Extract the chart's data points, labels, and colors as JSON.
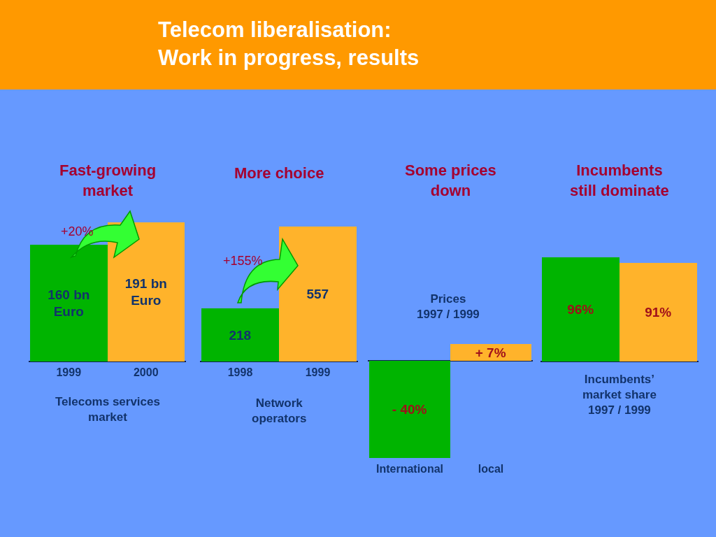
{
  "chart_data": [
    {
      "type": "other",
      "title": "Telecom liberalisation:\nWork in progress, results"
    },
    {
      "type": "bar",
      "title": "Fast-growing\nmarket",
      "xlabel": "Telecoms services\nmarket",
      "categories": [
        "1999",
        "2000"
      ],
      "values": [
        160,
        191
      ],
      "colors": [
        "#00b400",
        "#ffb32b"
      ],
      "value_labels": [
        "160 bn\nEuro",
        "191 bn\nEuro"
      ],
      "annotations": [
        "+20%"
      ]
    },
    {
      "type": "bar",
      "title": "More choice",
      "xlabel": "Network\noperators",
      "categories": [
        "1998",
        "1999"
      ],
      "values": [
        218,
        557
      ],
      "colors": [
        "#00b400",
        "#ffb32b"
      ],
      "data_labels": true,
      "annotations": [
        "+155%"
      ]
    },
    {
      "type": "bar",
      "title": "Some prices\ndown",
      "categories": [
        "International",
        "local"
      ],
      "values": [
        -40,
        7
      ],
      "colors": [
        "#00b400",
        "#ffb32b"
      ],
      "value_labels": [
        "- 40%",
        "+ 7%"
      ],
      "annotations": [
        "Prices\n1997 / 1999"
      ]
    },
    {
      "type": "bar",
      "title": "Incumbents\nstill dominate",
      "xlabel": "Incumbents’\nmarket share\n1997 / 1999",
      "categories": [
        null,
        null
      ],
      "values": [
        96,
        91
      ],
      "colors": [
        "#00b400",
        "#ffb32b"
      ],
      "value_labels": [
        "96%",
        "91%"
      ]
    }
  ]
}
